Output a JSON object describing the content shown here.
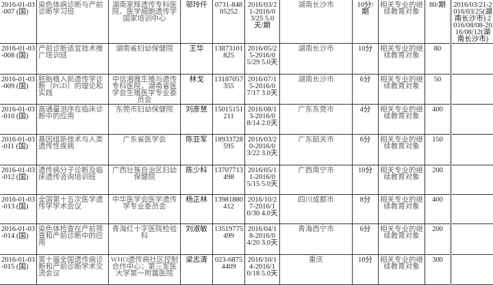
{
  "rows": [
    {
      "id": "2016-01-03-007 (国)",
      "name": "染色体病诊断与产前诊断学习班",
      "org": "湖南家辉遗传专科医院、医学细胞遗传学国家培训中心",
      "contact": "邬玲仟",
      "phone": "0731-84805252",
      "dates": "2016/03/21-2016/03/25 5.0天/期",
      "location": "湖南长沙市",
      "credits": "10分/期",
      "target": "相关专业的继续教育对象",
      "count": "80/期",
      "extra": "2016/03/21-2016/03/25(湖南长沙市) 2016/08/08-2016/08/12(湖南长沙市)"
    },
    {
      "id": "2016-01-03-008 (国)",
      "name": "产前诊断适宜技术推广培训班",
      "org": "湖南省妇幼保健院",
      "contact": "王华",
      "phone": "13873101825",
      "dates": "2016/05/25-2016/05/29 5.0天",
      "location": "湖南长沙市",
      "credits": "10分",
      "target": "相关专业的继续教育对象",
      "count": "80",
      "extra": ""
    },
    {
      "id": "2016-01-03-009 (国)",
      "name": "胚胎植入前遗传学诊断（PGD）的理论和实践",
      "org": "中信湘雅生殖与遗传专科医院，湖南省医学会生殖医学专业委员会",
      "contact": "林戈",
      "phone": "13187057355",
      "dates": "2016/07/15-2016/07/17 3.0天",
      "location": "湖南长沙市",
      "credits": "6分",
      "target": "相关专业的继续教育对象",
      "count": "50",
      "extra": ""
    },
    {
      "id": "2016-01-03-010 (国)",
      "name": "高通量测序在临床诊断中的应用",
      "org": "东莞市妇幼保健院",
      "contact": "刘彦慧",
      "phone": "15015151211",
      "dates": "2016/08/13-2016/08/14 2.0天",
      "location": "广东东莞市",
      "credits": "4分",
      "target": "相关专业的继续教育对象",
      "count": "400",
      "extra": ""
    },
    {
      "id": "2016-01-03-011 (国)",
      "name": "基因组新技术与人类遗传性疾病",
      "org": "广东省医学会",
      "contact": "陈亚军",
      "phone": "18933728595",
      "dates": "2016/03/20-2016/03/22 3.0天",
      "location": "广东韶关市",
      "credits": "6分",
      "target": "相关专业的继续教育对象",
      "count": "150",
      "extra": ""
    },
    {
      "id": "2016-01-03-012 (国)",
      "name": "遗传病分子诊断及临床遗传咨询培训班",
      "org": "广西壮族自治区妇幼保健院",
      "contact": "陈少科",
      "phone": "13707713498",
      "dates": "2016/05/11-2016/05/15 5.0天",
      "location": "广西南宁市",
      "credits": "10分",
      "target": "相关专业的继续教育对象",
      "count": "200",
      "extra": ""
    },
    {
      "id": "2016-01-03-013 (国)",
      "name": "全国第十五次医学遗传学学术会议",
      "org": "中华医学会医学遗传学专业委员会",
      "contact": "杨正林",
      "phone": "13981880412",
      "dates": "2016/10/27-2016/10/30 4.0天",
      "location": "四川成都市",
      "credits": "8分",
      "target": "相关专业的继续教育对象",
      "count": "400",
      "extra": ""
    },
    {
      "id": "2016-01-03-014 (国)",
      "name": "染色体检查在产前筛查和产前诊断中的应用",
      "org": "青海红十字医院检验科",
      "contact": "刘淑敏",
      "phone": "13519775499",
      "dates": "2016/04/18-2016/04/20 3.0天",
      "location": "青海西宁市",
      "credits": "6分",
      "target": "相关专业的继续教育对象",
      "count": "200",
      "extra": ""
    },
    {
      "id": "2016-01-03-015 (国)",
      "name": "第十届全国遗传病诊断和产前诊断学术交流会议",
      "org": "WHO遗传病社区控制合作中心；第三军医大学第一附属医院",
      "contact": "梁志清",
      "phone": "023-68754409",
      "dates": "2016/10/14-2016/10/18 5.0天",
      "location": "重庆",
      "credits": "10分",
      "target": "相关专业的继续教育对象",
      "count": "300",
      "extra": ""
    }
  ]
}
